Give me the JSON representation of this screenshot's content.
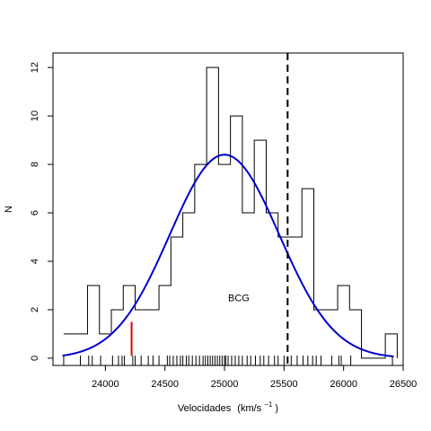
{
  "chart_data": {
    "type": "histogram",
    "xlabel": "Velocidades",
    "xlabel_units_base": "(km/s",
    "xlabel_units_exp": "−1",
    "xlabel_units_close": ")",
    "ylabel": "N",
    "xlim": [
      23560,
      26500
    ],
    "ylim": [
      -0.3,
      12.6
    ],
    "x_ticks": [
      24000,
      24500,
      25000,
      25500,
      26000,
      26500
    ],
    "y_ticks": [
      0,
      2,
      4,
      6,
      8,
      10,
      12
    ],
    "histogram": {
      "bin_edges": [
        23650,
        23850,
        23950,
        24050,
        24150,
        24250,
        24350,
        24450,
        24550,
        24650,
        24750,
        24850,
        24950,
        25050,
        25150,
        25250,
        25350,
        25450,
        25550,
        25650,
        25750,
        25850,
        25950,
        26050,
        26150,
        26250,
        26350,
        26450
      ],
      "counts": [
        1,
        3,
        1,
        2,
        3,
        2,
        2,
        3,
        5,
        6,
        8,
        12,
        8,
        10,
        6,
        9,
        6,
        5,
        5,
        7,
        2,
        2,
        3,
        2,
        0,
        0,
        1
      ]
    },
    "gaussian_fit": {
      "mean": 25000,
      "sigma": 460,
      "peak": 8.4,
      "x_range": [
        23640,
        26420
      ],
      "color": "#0000cc"
    },
    "bcg_velocity": 25530,
    "bcg_label": "BCG",
    "red_marker": {
      "x": 24220,
      "y_range": [
        0.1,
        1.5
      ],
      "color": "#dd0000"
    },
    "rug_x": [
      23650,
      23790,
      23860,
      23890,
      23960,
      24060,
      24110,
      24140,
      24160,
      24230,
      24250,
      24300,
      24360,
      24400,
      24450,
      24520,
      24540,
      24570,
      24600,
      24630,
      24650,
      24680,
      24700,
      24730,
      24760,
      24790,
      24820,
      24840,
      24860,
      24880,
      24900,
      24920,
      24940,
      24960,
      24980,
      25000,
      25010,
      25030,
      25060,
      25090,
      25120,
      25150,
      25190,
      25220,
      25260,
      25300,
      25330,
      25370,
      25420,
      25450,
      25500,
      25560,
      25610,
      25660,
      25700,
      25740,
      25770,
      25810,
      25900,
      25960,
      25980,
      26060,
      26410
    ]
  }
}
